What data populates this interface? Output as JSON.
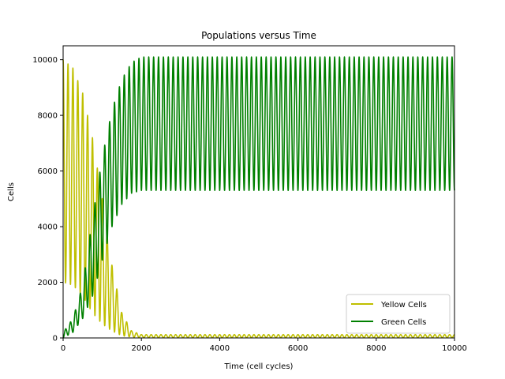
{
  "chart_data": {
    "type": "line",
    "title": "Populations versus Time",
    "xlabel": "Time (cell cycles)",
    "ylabel": "Cells",
    "xlim": [
      0,
      10000
    ],
    "ylim": [
      0,
      10500
    ],
    "xticks": [
      0,
      2000,
      4000,
      6000,
      8000,
      10000
    ],
    "yticks": [
      0,
      2000,
      4000,
      6000,
      8000,
      10000
    ],
    "grid": false,
    "legend_position": "lower-right",
    "series": [
      {
        "name": "Yellow Cells",
        "color": "#bfbf00",
        "oscillation_period": 125,
        "envelope": [
          {
            "x": 0,
            "min": 2000,
            "max": 10000
          },
          {
            "x": 250,
            "min": 1900,
            "max": 9700
          },
          {
            "x": 500,
            "min": 1500,
            "max": 8800
          },
          {
            "x": 750,
            "min": 900,
            "max": 7200
          },
          {
            "x": 1000,
            "min": 500,
            "max": 5000
          },
          {
            "x": 1250,
            "min": 250,
            "max": 2600
          },
          {
            "x": 1500,
            "min": 80,
            "max": 900
          },
          {
            "x": 1750,
            "min": 30,
            "max": 250
          },
          {
            "x": 2000,
            "min": 10,
            "max": 120
          },
          {
            "x": 10000,
            "min": 10,
            "max": 120
          }
        ]
      },
      {
        "name": "Green Cells",
        "color": "#008000",
        "oscillation_period": 125,
        "envelope": [
          {
            "x": 0,
            "min": 0,
            "max": 200
          },
          {
            "x": 250,
            "min": 200,
            "max": 700
          },
          {
            "x": 500,
            "min": 700,
            "max": 1900
          },
          {
            "x": 750,
            "min": 1500,
            "max": 4300
          },
          {
            "x": 1000,
            "min": 2800,
            "max": 6500
          },
          {
            "x": 1250,
            "min": 4000,
            "max": 8200
          },
          {
            "x": 1500,
            "min": 4800,
            "max": 9300
          },
          {
            "x": 1750,
            "min": 5200,
            "max": 9900
          },
          {
            "x": 2000,
            "min": 5300,
            "max": 10100
          },
          {
            "x": 10000,
            "min": 5300,
            "max": 10100
          }
        ]
      }
    ]
  }
}
